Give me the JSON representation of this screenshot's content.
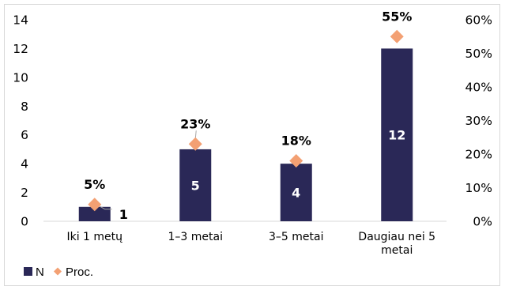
{
  "chart_data": {
    "type": "bar",
    "categories": [
      "Iki 1 metų",
      "1–3 metai",
      "3–5 metai",
      "Daugiau nei 5 metai"
    ],
    "series": [
      {
        "name": "N",
        "type": "bar",
        "axis": "left",
        "values": [
          1,
          5,
          4,
          12
        ],
        "data_labels": [
          "1",
          "5",
          "4",
          "12"
        ],
        "color": "#2a2857"
      },
      {
        "name": "Proc.",
        "type": "scatter",
        "marker": "diamond",
        "axis": "right",
        "values": [
          5,
          23,
          18,
          55
        ],
        "data_labels": [
          "5%",
          "23%",
          "18%",
          "55%"
        ],
        "color": "#f3a073"
      }
    ],
    "y_left": {
      "min": 0,
      "max": 14,
      "ticks": [
        "0",
        "2",
        "4",
        "6",
        "8",
        "10",
        "12",
        "14"
      ]
    },
    "y_right": {
      "min": 0,
      "max": 60,
      "ticks": [
        "0%",
        "10%",
        "20%",
        "30%",
        "40%",
        "50%",
        "60%"
      ]
    },
    "grid": false,
    "legend_position": "bottom-left"
  }
}
